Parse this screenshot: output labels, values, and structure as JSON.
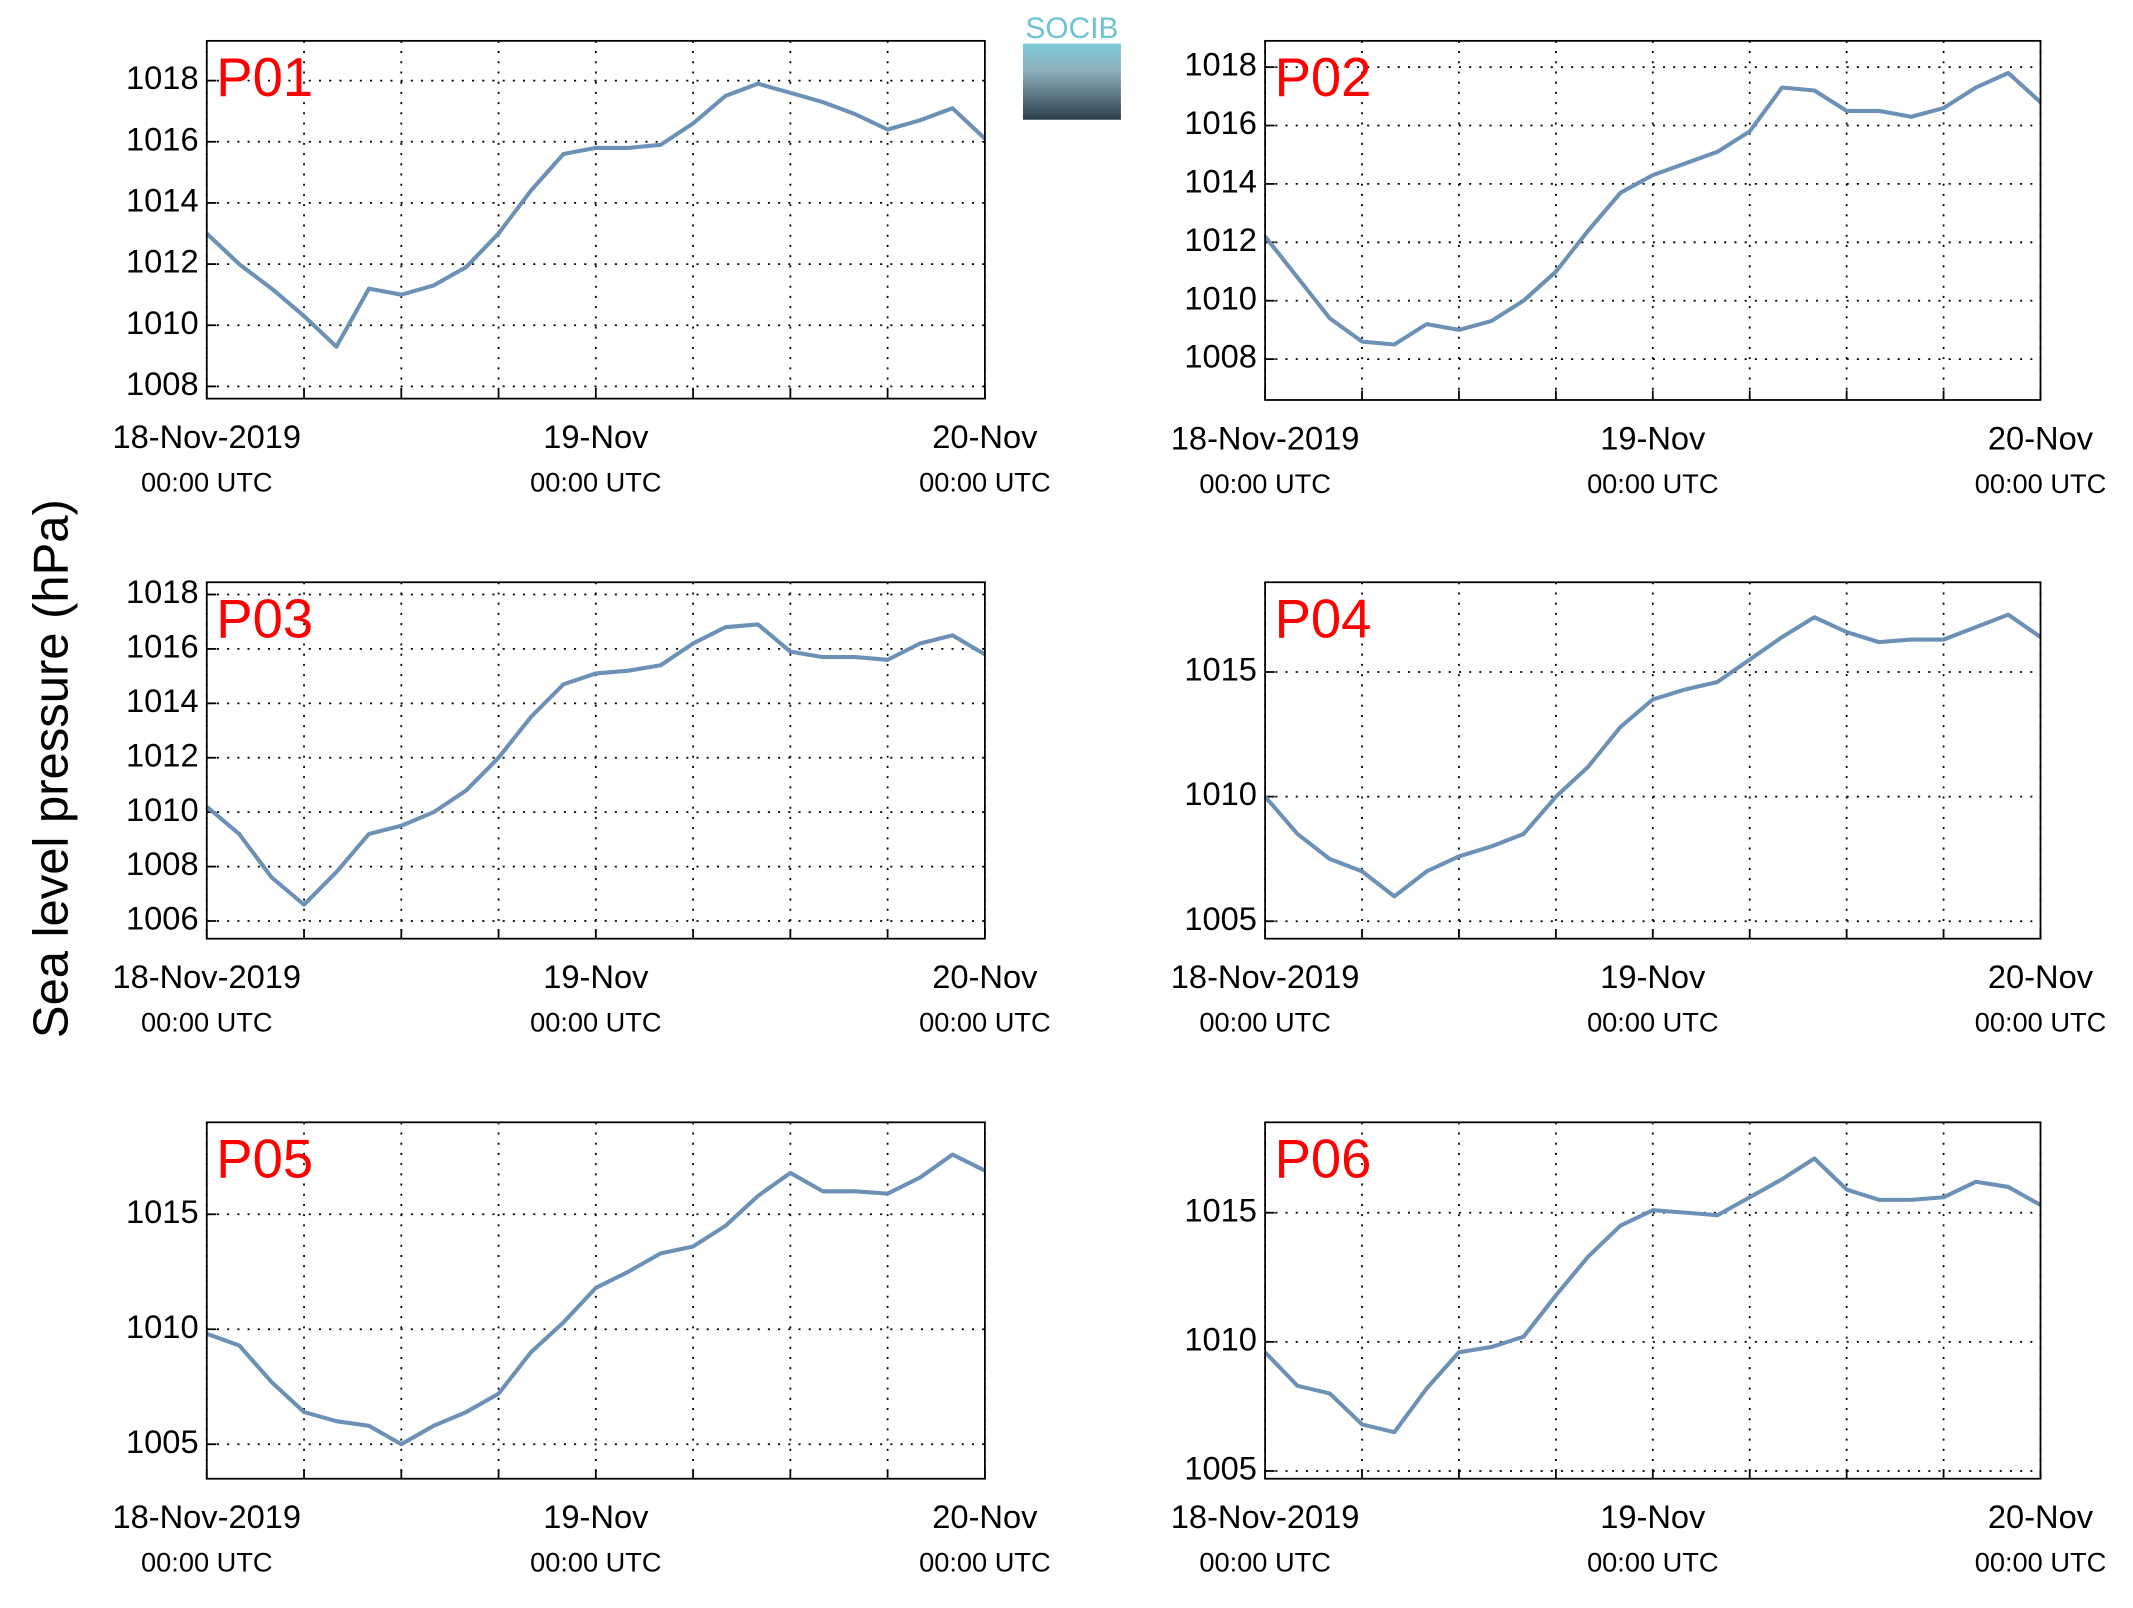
{
  "ylabel": "Sea level pressure (hPa)",
  "logo_text": "SOCIB",
  "chart_data": [
    {
      "type": "line",
      "title": "P01",
      "color": "#6b92b6",
      "grid": true,
      "x": [
        "2019-11-18 00:00",
        "2019-11-18 02:00",
        "2019-11-18 04:00",
        "2019-11-18 06:00",
        "2019-11-18 08:00",
        "2019-11-18 10:00",
        "2019-11-18 12:00",
        "2019-11-18 14:00",
        "2019-11-18 16:00",
        "2019-11-18 18:00",
        "2019-11-18 20:00",
        "2019-11-18 22:00",
        "2019-11-19 00:00",
        "2019-11-19 02:00",
        "2019-11-19 04:00",
        "2019-11-19 06:00",
        "2019-11-19 08:00",
        "2019-11-19 10:00",
        "2019-11-19 12:00",
        "2019-11-19 14:00",
        "2019-11-19 16:00",
        "2019-11-19 18:00",
        "2019-11-19 20:00",
        "2019-11-19 22:00",
        "2019-11-20 00:00"
      ],
      "values": [
        1013.0,
        1012.0,
        1011.2,
        1010.3,
        1009.3,
        1011.2,
        1011.0,
        1011.3,
        1011.9,
        1013.0,
        1014.4,
        1015.6,
        1015.8,
        1015.8,
        1015.9,
        1016.6,
        1017.5,
        1017.9,
        1017.6,
        1017.3,
        1016.9,
        1016.4,
        1016.7,
        1017.1,
        1016.1
      ],
      "xlim": [
        "2019-11-18 00:00",
        "2019-11-20 00:00"
      ],
      "xticks": [
        {
          "value": "2019-11-18 00:00",
          "label": [
            "18-Nov-2019",
            "00:00 UTC"
          ]
        },
        "2019-11-18 06:00",
        "2019-11-18 12:00",
        "2019-11-18 18:00",
        {
          "value": "2019-11-19 00:00",
          "label": [
            "19-Nov",
            "00:00 UTC"
          ]
        },
        "2019-11-19 06:00",
        "2019-11-19 12:00",
        "2019-11-19 18:00",
        {
          "value": "2019-11-20 00:00",
          "label": [
            "20-Nov",
            "00:00 UTC"
          ]
        }
      ],
      "ylim": [
        1007.6,
        1019.3
      ],
      "yticks": [
        1008,
        1010,
        1012,
        1014,
        1016,
        1018
      ]
    },
    {
      "type": "line",
      "title": "P02",
      "color": "#6b92b6",
      "grid": true,
      "x": [
        "2019-11-18 00:00",
        "2019-11-18 02:00",
        "2019-11-18 04:00",
        "2019-11-18 06:00",
        "2019-11-18 08:00",
        "2019-11-18 10:00",
        "2019-11-18 12:00",
        "2019-11-18 14:00",
        "2019-11-18 16:00",
        "2019-11-18 18:00",
        "2019-11-18 20:00",
        "2019-11-18 22:00",
        "2019-11-19 00:00",
        "2019-11-19 02:00",
        "2019-11-19 04:00",
        "2019-11-19 06:00",
        "2019-11-19 08:00",
        "2019-11-19 10:00",
        "2019-11-19 12:00",
        "2019-11-19 14:00",
        "2019-11-19 16:00",
        "2019-11-19 18:00",
        "2019-11-19 20:00",
        "2019-11-19 22:00",
        "2019-11-20 00:00"
      ],
      "values": [
        1012.2,
        1010.8,
        1009.4,
        1008.6,
        1008.5,
        1009.2,
        1009.0,
        1009.3,
        1010.0,
        1011.0,
        1012.4,
        1013.7,
        1014.3,
        1014.7,
        1015.1,
        1015.8,
        1017.3,
        1017.2,
        1016.5,
        1016.5,
        1016.3,
        1016.6,
        1017.3,
        1017.8,
        1016.8
      ],
      "xlim": [
        "2019-11-18 00:00",
        "2019-11-20 00:00"
      ],
      "xticks": [
        {
          "value": "2019-11-18 00:00",
          "label": [
            "18-Nov-2019",
            "00:00 UTC"
          ]
        },
        "2019-11-18 06:00",
        "2019-11-18 12:00",
        "2019-11-18 18:00",
        {
          "value": "2019-11-19 00:00",
          "label": [
            "19-Nov",
            "00:00 UTC"
          ]
        },
        "2019-11-19 06:00",
        "2019-11-19 12:00",
        "2019-11-19 18:00",
        {
          "value": "2019-11-20 00:00",
          "label": [
            "20-Nov",
            "00:00 UTC"
          ]
        }
      ],
      "ylim": [
        1006.6,
        1018.9
      ],
      "yticks": [
        1008,
        1010,
        1012,
        1014,
        1016,
        1018
      ]
    },
    {
      "type": "line",
      "title": "P03",
      "color": "#6b92b6",
      "grid": true,
      "x": [
        "2019-11-18 00:00",
        "2019-11-18 02:00",
        "2019-11-18 04:00",
        "2019-11-18 06:00",
        "2019-11-18 08:00",
        "2019-11-18 10:00",
        "2019-11-18 12:00",
        "2019-11-18 14:00",
        "2019-11-18 16:00",
        "2019-11-18 18:00",
        "2019-11-18 20:00",
        "2019-11-18 22:00",
        "2019-11-19 00:00",
        "2019-11-19 02:00",
        "2019-11-19 04:00",
        "2019-11-19 06:00",
        "2019-11-19 08:00",
        "2019-11-19 10:00",
        "2019-11-19 12:00",
        "2019-11-19 14:00",
        "2019-11-19 16:00",
        "2019-11-19 18:00",
        "2019-11-19 20:00",
        "2019-11-19 22:00",
        "2019-11-20 00:00"
      ],
      "values": [
        1010.2,
        1009.2,
        1007.6,
        1006.6,
        1007.8,
        1009.2,
        1009.5,
        1010.0,
        1010.8,
        1012.0,
        1013.5,
        1014.7,
        1015.1,
        1015.2,
        1015.4,
        1016.2,
        1016.8,
        1016.9,
        1015.9,
        1015.7,
        1015.7,
        1015.6,
        1016.2,
        1016.5,
        1015.8
      ],
      "xlim": [
        "2019-11-18 00:00",
        "2019-11-20 00:00"
      ],
      "xticks": [
        {
          "value": "2019-11-18 00:00",
          "label": [
            "18-Nov-2019",
            "00:00 UTC"
          ]
        },
        "2019-11-18 06:00",
        "2019-11-18 12:00",
        "2019-11-18 18:00",
        {
          "value": "2019-11-19 00:00",
          "label": [
            "19-Nov",
            "00:00 UTC"
          ]
        },
        "2019-11-19 06:00",
        "2019-11-19 12:00",
        "2019-11-19 18:00",
        {
          "value": "2019-11-20 00:00",
          "label": [
            "20-Nov",
            "00:00 UTC"
          ]
        }
      ],
      "ylim": [
        1005.35,
        1018.45
      ],
      "yticks": [
        1006,
        1008,
        1010,
        1012,
        1014,
        1016,
        1018
      ]
    },
    {
      "type": "line",
      "title": "P04",
      "color": "#6b92b6",
      "grid": true,
      "x": [
        "2019-11-18 00:00",
        "2019-11-18 02:00",
        "2019-11-18 04:00",
        "2019-11-18 06:00",
        "2019-11-18 08:00",
        "2019-11-18 10:00",
        "2019-11-18 12:00",
        "2019-11-18 14:00",
        "2019-11-18 16:00",
        "2019-11-18 18:00",
        "2019-11-18 20:00",
        "2019-11-18 22:00",
        "2019-11-19 00:00",
        "2019-11-19 02:00",
        "2019-11-19 04:00",
        "2019-11-19 06:00",
        "2019-11-19 08:00",
        "2019-11-19 10:00",
        "2019-11-19 12:00",
        "2019-11-19 14:00",
        "2019-11-19 16:00",
        "2019-11-19 18:00",
        "2019-11-19 20:00",
        "2019-11-19 22:00",
        "2019-11-20 00:00"
      ],
      "values": [
        1010.0,
        1008.5,
        1007.5,
        1007.0,
        1006.0,
        1007.0,
        1007.6,
        1008.0,
        1008.5,
        1010.0,
        1011.2,
        1012.8,
        1013.9,
        1014.3,
        1014.6,
        1015.5,
        1016.4,
        1017.2,
        1016.6,
        1016.2,
        1016.3,
        1016.3,
        1016.8,
        1017.3,
        1016.4
      ],
      "xlim": [
        "2019-11-18 00:00",
        "2019-11-20 00:00"
      ],
      "xticks": [
        {
          "value": "2019-11-18 00:00",
          "label": [
            "18-Nov-2019",
            "00:00 UTC"
          ]
        },
        "2019-11-18 06:00",
        "2019-11-18 12:00",
        "2019-11-18 18:00",
        {
          "value": "2019-11-19 00:00",
          "label": [
            "19-Nov",
            "00:00 UTC"
          ]
        },
        "2019-11-19 06:00",
        "2019-11-19 12:00",
        "2019-11-19 18:00",
        {
          "value": "2019-11-20 00:00",
          "label": [
            "20-Nov",
            "00:00 UTC"
          ]
        }
      ],
      "ylim": [
        1004.3,
        1018.6
      ],
      "yticks": [
        1005,
        1010,
        1015
      ]
    },
    {
      "type": "line",
      "title": "P05",
      "color": "#6b92b6",
      "grid": true,
      "x": [
        "2019-11-18 00:00",
        "2019-11-18 02:00",
        "2019-11-18 04:00",
        "2019-11-18 06:00",
        "2019-11-18 08:00",
        "2019-11-18 10:00",
        "2019-11-18 12:00",
        "2019-11-18 14:00",
        "2019-11-18 16:00",
        "2019-11-18 18:00",
        "2019-11-18 20:00",
        "2019-11-18 22:00",
        "2019-11-19 00:00",
        "2019-11-19 02:00",
        "2019-11-19 04:00",
        "2019-11-19 06:00",
        "2019-11-19 08:00",
        "2019-11-19 10:00",
        "2019-11-19 12:00",
        "2019-11-19 14:00",
        "2019-11-19 16:00",
        "2019-11-19 18:00",
        "2019-11-19 20:00",
        "2019-11-19 22:00",
        "2019-11-20 00:00"
      ],
      "values": [
        1009.8,
        1009.3,
        1007.7,
        1006.4,
        1006.0,
        1005.8,
        1005.0,
        1005.8,
        1006.4,
        1007.2,
        1009.0,
        1010.3,
        1011.8,
        1012.5,
        1013.3,
        1013.6,
        1014.5,
        1015.8,
        1016.8,
        1016.0,
        1016.0,
        1015.9,
        1016.6,
        1017.6,
        1016.9
      ],
      "xlim": [
        "2019-11-18 00:00",
        "2019-11-20 00:00"
      ],
      "xticks": [
        {
          "value": "2019-11-18 00:00",
          "label": [
            "18-Nov-2019",
            "00:00 UTC"
          ]
        },
        "2019-11-18 06:00",
        "2019-11-18 12:00",
        "2019-11-18 18:00",
        {
          "value": "2019-11-19 00:00",
          "label": [
            "19-Nov",
            "00:00 UTC"
          ]
        },
        "2019-11-19 06:00",
        "2019-11-19 12:00",
        "2019-11-19 18:00",
        {
          "value": "2019-11-20 00:00",
          "label": [
            "20-Nov",
            "00:00 UTC"
          ]
        }
      ],
      "ylim": [
        1003.5,
        1019.0
      ],
      "yticks": [
        1005,
        1010,
        1015
      ]
    },
    {
      "type": "line",
      "title": "P06",
      "color": "#6b92b6",
      "grid": true,
      "x": [
        "2019-11-18 00:00",
        "2019-11-18 02:00",
        "2019-11-18 04:00",
        "2019-11-18 06:00",
        "2019-11-18 08:00",
        "2019-11-18 10:00",
        "2019-11-18 12:00",
        "2019-11-18 14:00",
        "2019-11-18 16:00",
        "2019-11-18 18:00",
        "2019-11-18 20:00",
        "2019-11-18 22:00",
        "2019-11-19 00:00",
        "2019-11-19 02:00",
        "2019-11-19 04:00",
        "2019-11-19 06:00",
        "2019-11-19 08:00",
        "2019-11-19 10:00",
        "2019-11-19 12:00",
        "2019-11-19 14:00",
        "2019-11-19 16:00",
        "2019-11-19 18:00",
        "2019-11-19 20:00",
        "2019-11-19 22:00",
        "2019-11-20 00:00"
      ],
      "values": [
        1009.6,
        1008.3,
        1008.0,
        1006.8,
        1006.5,
        1008.2,
        1009.6,
        1009.8,
        1010.2,
        1011.8,
        1013.3,
        1014.5,
        1015.1,
        1015.0,
        1014.9,
        1015.6,
        1016.3,
        1017.1,
        1015.9,
        1015.5,
        1015.5,
        1015.6,
        1016.2,
        1016.0,
        1015.3
      ],
      "xlim": [
        "2019-11-18 00:00",
        "2019-11-20 00:00"
      ],
      "xticks": [
        {
          "value": "2019-11-18 00:00",
          "label": [
            "18-Nov-2019",
            "00:00 UTC"
          ]
        },
        "2019-11-18 06:00",
        "2019-11-18 12:00",
        "2019-11-18 18:00",
        {
          "value": "2019-11-19 00:00",
          "label": [
            "19-Nov",
            "00:00 UTC"
          ]
        },
        "2019-11-19 06:00",
        "2019-11-19 12:00",
        "2019-11-19 18:00",
        {
          "value": "2019-11-20 00:00",
          "label": [
            "20-Nov",
            "00:00 UTC"
          ]
        }
      ],
      "ylim": [
        1004.7,
        1018.5
      ],
      "yticks": [
        1005,
        1010,
        1015
      ]
    }
  ]
}
